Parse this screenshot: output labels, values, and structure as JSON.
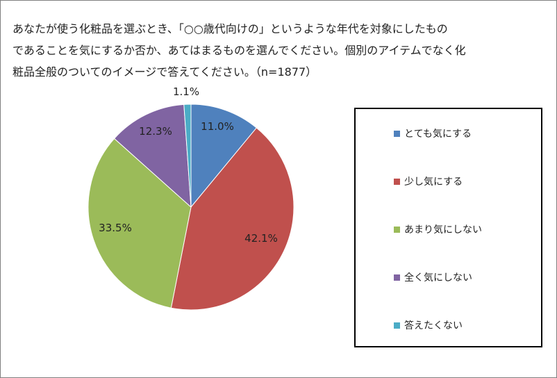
{
  "title_lines": [
    "あなたが使う化粧品を選ぶとき、「○○歳代向けの」というような年代を対象にしたもの",
    "であることを気にするか否か、あてはまるものを選んでください。個別のアイテムでなく化",
    "粧品全般のついてのイメージで答えてください。（n=1877）"
  ],
  "chart_data": {
    "type": "pie",
    "title": "あなたが使う化粧品を選ぶとき、「○○歳代向けの」というような年代を対象にしたものであることを気にするか否か、あてはまるものを選んでください。個別のアイテムでなく化粧品全般のついてのイメージで答えてください。（n=1877）",
    "categories": [
      "とても気にする",
      "少し気にする",
      "あまり気にしない",
      "全く気にしない",
      "答えたくない"
    ],
    "values": [
      11.0,
      42.1,
      33.5,
      12.3,
      1.1
    ],
    "data_labels": [
      "11.0%",
      "42.1%",
      "33.5%",
      "12.3%",
      "1.1%"
    ],
    "colors": [
      "#4f81bd",
      "#c0504d",
      "#9bbb59",
      "#8064a2",
      "#4bacc6"
    ],
    "start_angle_deg": 0,
    "direction": "clockwise",
    "legend_position": "right"
  }
}
